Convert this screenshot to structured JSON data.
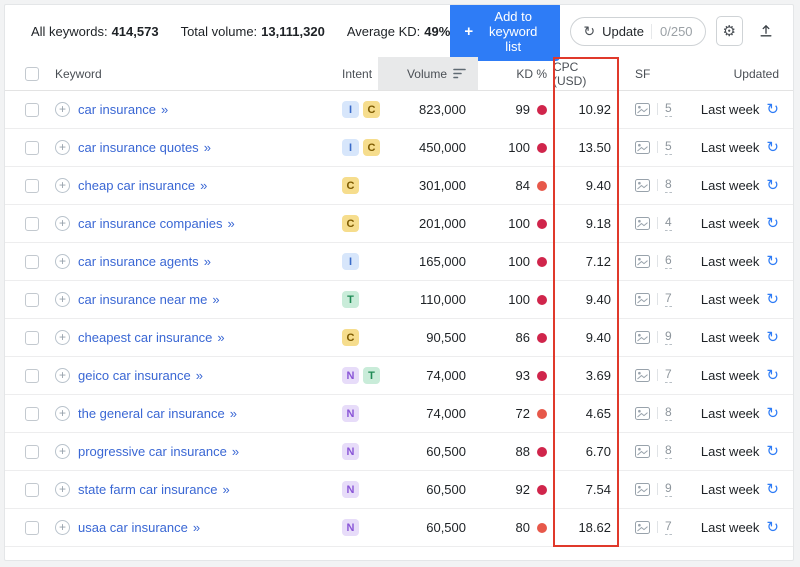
{
  "colors": {
    "accent_blue": "#2e7cf6",
    "link_blue": "#3a67d4",
    "kd_very_hard": "#d0254b",
    "kd_hard": "#e7584a",
    "highlight_red": "#e0392b",
    "volume_header_bg": "#e8e9ea"
  },
  "icons": {
    "add_plus": "+",
    "keyword_plus": "+",
    "chevron_double": "»",
    "refresh": "↻",
    "gear": "⚙"
  },
  "topbar": {
    "stats": [
      {
        "label": "All keywords:",
        "value": "414,573"
      },
      {
        "label": "Total volume:",
        "value": "13,111,320"
      },
      {
        "label": "Average KD:",
        "value": "49%"
      }
    ],
    "add_button_label": "Add to keyword list",
    "update_button": {
      "label": "Update",
      "count": "0/250"
    }
  },
  "table": {
    "headers": {
      "keyword": "Keyword",
      "intent": "Intent",
      "volume": "Volume",
      "kd": "KD %",
      "cpc": "CPC (USD)",
      "sf": "SF",
      "updated": "Updated"
    },
    "rows": [
      {
        "keyword": "car insurance",
        "intents": [
          "I",
          "C"
        ],
        "volume": "823,000",
        "kd": "99",
        "cpc": "10.92",
        "sf": "5",
        "updated": "Last week"
      },
      {
        "keyword": "car insurance quotes",
        "intents": [
          "I",
          "C"
        ],
        "volume": "450,000",
        "kd": "100",
        "cpc": "13.50",
        "sf": "5",
        "updated": "Last week"
      },
      {
        "keyword": "cheap car insurance",
        "intents": [
          "C"
        ],
        "volume": "301,000",
        "kd": "84",
        "cpc": "9.40",
        "sf": "8",
        "updated": "Last week"
      },
      {
        "keyword": "car insurance companies",
        "intents": [
          "C"
        ],
        "volume": "201,000",
        "kd": "100",
        "cpc": "9.18",
        "sf": "4",
        "updated": "Last week"
      },
      {
        "keyword": "car insurance agents",
        "intents": [
          "I"
        ],
        "volume": "165,000",
        "kd": "100",
        "cpc": "7.12",
        "sf": "6",
        "updated": "Last week"
      },
      {
        "keyword": "car insurance near me",
        "intents": [
          "T"
        ],
        "volume": "110,000",
        "kd": "100",
        "cpc": "9.40",
        "sf": "7",
        "updated": "Last week"
      },
      {
        "keyword": "cheapest car insurance",
        "intents": [
          "C"
        ],
        "volume": "90,500",
        "kd": "86",
        "cpc": "9.40",
        "sf": "9",
        "updated": "Last week"
      },
      {
        "keyword": "geico car insurance",
        "intents": [
          "N",
          "T"
        ],
        "volume": "74,000",
        "kd": "93",
        "cpc": "3.69",
        "sf": "7",
        "updated": "Last week"
      },
      {
        "keyword": "the general car insurance",
        "intents": [
          "N"
        ],
        "volume": "74,000",
        "kd": "72",
        "cpc": "4.65",
        "sf": "8",
        "updated": "Last week"
      },
      {
        "keyword": "progressive car insurance",
        "intents": [
          "N"
        ],
        "volume": "60,500",
        "kd": "88",
        "cpc": "6.70",
        "sf": "8",
        "updated": "Last week"
      },
      {
        "keyword": "state farm car insurance",
        "intents": [
          "N"
        ],
        "volume": "60,500",
        "kd": "92",
        "cpc": "7.54",
        "sf": "9",
        "updated": "Last week"
      },
      {
        "keyword": "usaa car insurance",
        "intents": [
          "N"
        ],
        "volume": "60,500",
        "kd": "80",
        "cpc": "18.62",
        "sf": "7",
        "updated": "Last week"
      }
    ]
  },
  "intent_styles": {
    "I": {
      "bg": "#d7e6fb",
      "fg": "#3a6bc9"
    },
    "C": {
      "bg": "#f6dd8d",
      "fg": "#7d5a00"
    },
    "N": {
      "bg": "#e7dcf9",
      "fg": "#8a55d7"
    },
    "T": {
      "bg": "#c9ecd9",
      "fg": "#1f8a55"
    }
  }
}
